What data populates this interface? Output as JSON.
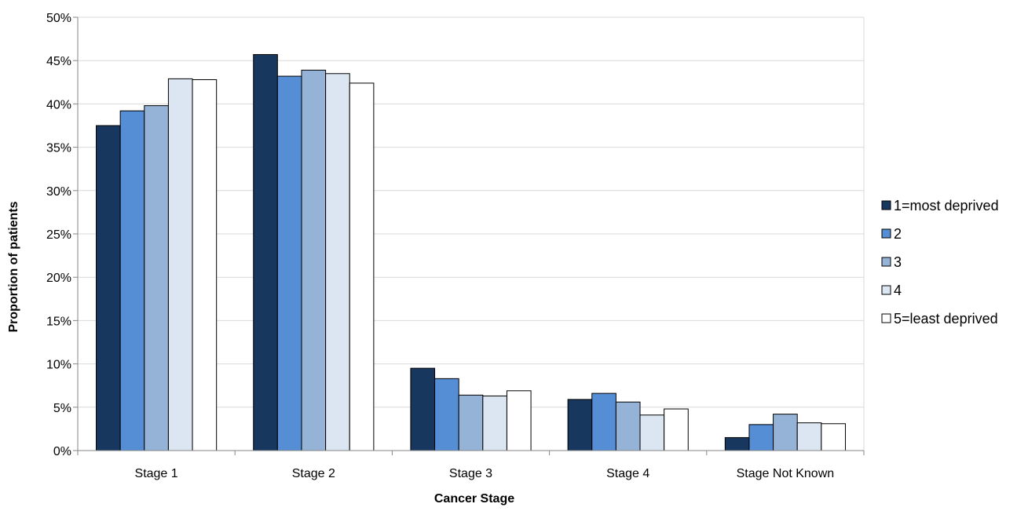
{
  "chart_data": {
    "type": "bar",
    "title": "",
    "xlabel": "Cancer Stage",
    "ylabel": "Proportion of patients",
    "categories": [
      "Stage 1",
      "Stage 2",
      "Stage 3",
      "Stage 4",
      "Stage Not Known"
    ],
    "ylim": [
      0,
      50
    ],
    "yticks": [
      0,
      5,
      10,
      15,
      20,
      25,
      30,
      35,
      40,
      45,
      50
    ],
    "ytick_suffix": "%",
    "grid": true,
    "legend_position": "right",
    "series": [
      {
        "name": "1=most deprived",
        "color": "#17375e",
        "values": [
          37.5,
          45.7,
          9.5,
          5.9,
          1.5
        ]
      },
      {
        "name": "2",
        "color": "#558ed5",
        "values": [
          39.2,
          43.2,
          8.3,
          6.6,
          3.0
        ]
      },
      {
        "name": "3",
        "color": "#95b3d7",
        "values": [
          39.8,
          43.9,
          6.4,
          5.6,
          4.2
        ]
      },
      {
        "name": "4",
        "color": "#dce6f2",
        "values": [
          42.9,
          43.5,
          6.3,
          4.1,
          3.2
        ]
      },
      {
        "name": "5=least deprived",
        "color": "#ffffff",
        "values": [
          42.8,
          42.4,
          6.9,
          4.8,
          3.1
        ]
      }
    ]
  }
}
